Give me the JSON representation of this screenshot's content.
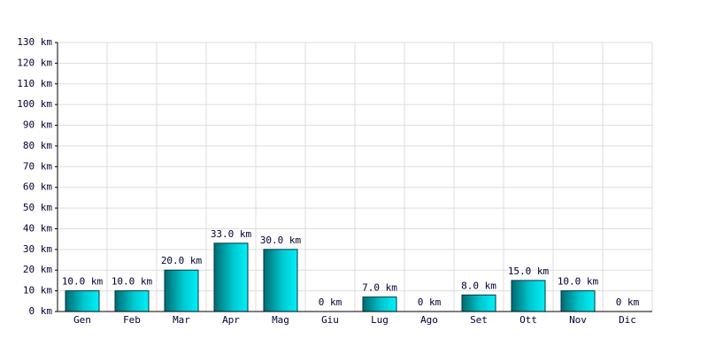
{
  "chart_data": {
    "type": "bar",
    "categories": [
      "Gen",
      "Feb",
      "Mar",
      "Apr",
      "Mag",
      "Giu",
      "Lug",
      "Ago",
      "Set",
      "Ott",
      "Nov",
      "Dic"
    ],
    "values": [
      10,
      10,
      20,
      33,
      30,
      0,
      7,
      0,
      8,
      15,
      10,
      0
    ],
    "value_labels": [
      "10.0 km",
      "10.0 km",
      "20.0 km",
      "33.0 km",
      "30.0 km",
      "0 km",
      "7.0 km",
      "0 km",
      "8.0 km",
      "15.0 km",
      "10.0 km",
      "0 km"
    ],
    "color": "#00d0d8",
    "ylim": [
      0,
      130
    ],
    "yticks": [
      {
        "value": 0,
        "label": "0 km"
      },
      {
        "value": 10,
        "label": "10 km"
      },
      {
        "value": 20,
        "label": "20 km"
      },
      {
        "value": 30,
        "label": "30 km"
      },
      {
        "value": 40,
        "label": "40 km"
      },
      {
        "value": 50,
        "label": "50 km"
      },
      {
        "value": 60,
        "label": "60 km"
      },
      {
        "value": 70,
        "label": "70 km"
      },
      {
        "value": 80,
        "label": "80 km"
      },
      {
        "value": 90,
        "label": "90 km"
      },
      {
        "value": 100,
        "label": "100 km"
      },
      {
        "value": 110,
        "label": "110 km"
      },
      {
        "value": 120,
        "label": "120 km"
      },
      {
        "value": 130,
        "label": "130 km"
      }
    ],
    "grid": true
  }
}
